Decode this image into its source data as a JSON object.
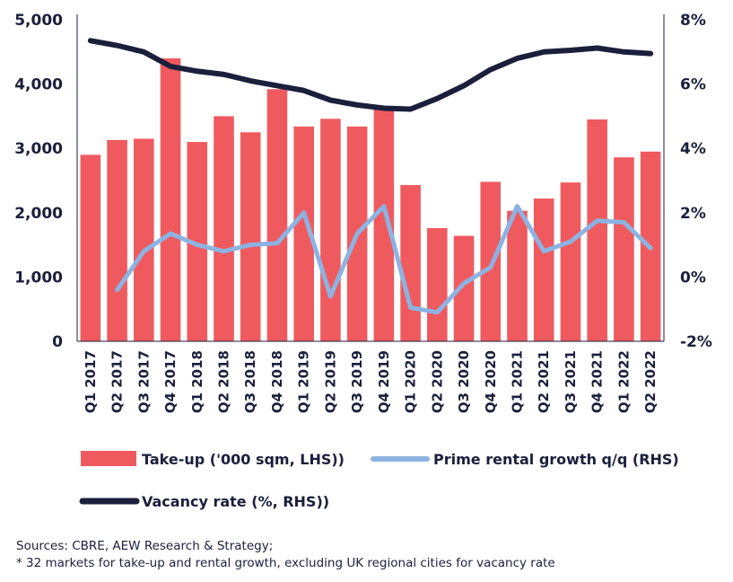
{
  "chart_data": {
    "type": "bar",
    "categories": [
      "Q1 2017",
      "Q2 2017",
      "Q3 2017",
      "Q4 2017",
      "Q1 2018",
      "Q2 2018",
      "Q3 2018",
      "Q4 2018",
      "Q1 2019",
      "Q2 2019",
      "Q3 2019",
      "Q4 2019",
      "Q1 2020",
      "Q2 2020",
      "Q3 2020",
      "Q4 2020",
      "Q1 2021",
      "Q2 2021",
      "Q3 2021",
      "Q4 2021",
      "Q1 2022",
      "Q2 2022"
    ],
    "series": [
      {
        "name": "Take-up ('000 sqm, LHS))",
        "type": "bar",
        "axis": "left",
        "color": "#ef5a5f",
        "values": [
          2900,
          3130,
          3150,
          4400,
          3100,
          3500,
          3250,
          3920,
          3340,
          3460,
          3340,
          3620,
          2430,
          1760,
          1640,
          2480,
          2030,
          2220,
          2470,
          3450,
          2860,
          2950
        ]
      },
      {
        "name": "Prime rental growth q/q (RHS)",
        "type": "line",
        "axis": "right",
        "color": "#8db3e2",
        "values": [
          null,
          -0.4,
          0.8,
          1.35,
          1.0,
          0.8,
          1.0,
          1.05,
          2.0,
          -0.6,
          1.35,
          2.2,
          -0.95,
          -1.1,
          -0.2,
          0.3,
          2.2,
          0.8,
          1.1,
          1.75,
          1.7,
          0.9
        ]
      },
      {
        "name": "Vacancy rate (%, RHS))",
        "type": "line",
        "axis": "right",
        "color": "#1a1f3c",
        "values": [
          7.35,
          7.2,
          7.0,
          6.55,
          6.4,
          6.3,
          6.1,
          5.95,
          5.8,
          5.5,
          5.35,
          5.25,
          5.22,
          5.55,
          5.95,
          6.45,
          6.8,
          7.0,
          7.05,
          7.12,
          7.0,
          6.95
        ]
      }
    ],
    "left_axis": {
      "ylim": [
        0,
        5000
      ],
      "ticks": [
        "0",
        "1,000",
        "2,000",
        "3,000",
        "4,000",
        "5,000"
      ]
    },
    "right_axis": {
      "ylim": [
        -2,
        8
      ],
      "ticks": [
        "-2%",
        "0%",
        "2%",
        "4%",
        "6%",
        "8%"
      ]
    },
    "grid": false,
    "legend_position": "bottom"
  },
  "notes": {
    "sources": "Sources: CBRE, AEW Research & Strategy;",
    "footnote": "* 32 markets for take-up and rental growth, excluding UK regional cities for vacancy rate"
  }
}
